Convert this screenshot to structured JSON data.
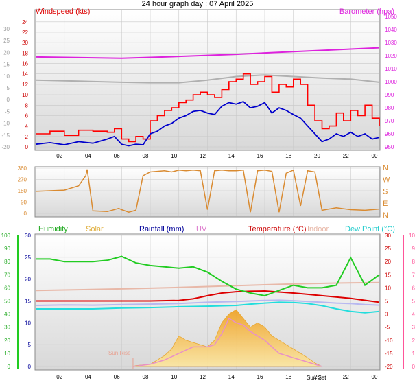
{
  "title": "24 hour graph day : 07 April 2025",
  "colors": {
    "windspeed": "#ff0000",
    "windavg": "#0000cc",
    "temp_grey": "#b0b0b0",
    "barometer": "#dd22dd",
    "direction": "#d98a30",
    "humidity": "#22cc22",
    "solar": "#f2b640",
    "rainfall": "#000099",
    "uv": "#dd77cc",
    "temperature": "#dd0000",
    "indoor": "#e8b8a8",
    "dewpoint": "#22dddd",
    "sunrise_label": "#e8a090",
    "pink_axis": "#ff5599"
  },
  "chart_data": [
    {
      "type": "line",
      "panel": "wind",
      "title": "Windspeed (kts)",
      "right_label": "Barometer (hpa)",
      "x_ticks": [
        "02",
        "04",
        "06",
        "08",
        "10",
        "12",
        "14",
        "16",
        "18",
        "20",
        "22",
        "00"
      ],
      "left_far_ticks": [
        "30",
        "25",
        "20",
        "15",
        "10",
        "5",
        "0",
        "-5",
        "-10",
        "-15",
        "-20"
      ],
      "left_ticks": [
        "24",
        "22",
        "20",
        "18",
        "16",
        "14",
        "12",
        "10",
        "8",
        "6",
        "4",
        "2",
        "0"
      ],
      "right_ticks": [
        "1050",
        "1040",
        "1030",
        "1020",
        "1010",
        "1000",
        "990",
        "980",
        "970",
        "960",
        "950"
      ],
      "ylim_left": [
        0,
        24.5
      ],
      "ylim_right": [
        948,
        1050
      ],
      "series": [
        {
          "key": "barometer",
          "x": [
            0,
            6,
            9,
            14,
            18,
            22,
            24
          ],
          "y": [
            1019,
            1018,
            1019,
            1021,
            1023,
            1025,
            1026
          ]
        },
        {
          "key": "greyline",
          "x": [
            0,
            3,
            6,
            8,
            10,
            12,
            14,
            16,
            18,
            20,
            22,
            24
          ],
          "y": [
            12.8,
            12.6,
            12.4,
            12.3,
            12.3,
            12.8,
            13.5,
            13.8,
            13.5,
            13.2,
            13.0,
            12.4
          ]
        },
        {
          "key": "gust",
          "x": [
            0,
            1,
            2,
            3,
            4,
            5,
            5.5,
            6,
            6.5,
            7,
            7.5,
            8,
            8.5,
            9,
            9.5,
            10,
            10.5,
            11,
            11.5,
            12,
            12.5,
            13,
            13.5,
            14,
            14.5,
            15,
            15.5,
            16,
            16.5,
            17,
            17.5,
            18,
            18.5,
            19,
            19.5,
            20,
            20.5,
            21,
            21.5,
            22,
            22.5,
            23,
            23.5,
            24
          ],
          "y": [
            2.5,
            3,
            2.2,
            3.2,
            3,
            2.8,
            3.5,
            1.5,
            1,
            2,
            1.5,
            5,
            6,
            7,
            7.5,
            8.5,
            9,
            10,
            10.5,
            10,
            9.5,
            11,
            12.5,
            13,
            14,
            12,
            12.5,
            13.5,
            10.5,
            12,
            11.5,
            13,
            12,
            8,
            5,
            3.5,
            4,
            6.5,
            5,
            7,
            6,
            8,
            5.5,
            4
          ]
        },
        {
          "key": "average",
          "x": [
            0,
            1,
            2,
            3,
            4,
            5,
            5.5,
            6,
            6.5,
            7,
            7.5,
            8,
            8.5,
            9,
            9.5,
            10,
            10.5,
            11,
            11.5,
            12,
            12.5,
            13,
            13.5,
            14,
            14.5,
            15,
            15.5,
            16,
            16.5,
            17,
            17.5,
            18,
            18.5,
            19,
            19.5,
            20,
            20.5,
            21,
            21.5,
            22,
            22.5,
            23,
            23.5,
            24
          ],
          "y": [
            0.5,
            0.8,
            0.4,
            1,
            0.7,
            1.5,
            2,
            0.5,
            0.2,
            0.5,
            0.4,
            2.5,
            3,
            4,
            4.5,
            5.5,
            6,
            6.8,
            7,
            6.5,
            6.2,
            7.8,
            8.5,
            8.2,
            8.7,
            7.5,
            7.8,
            8.5,
            6.5,
            7.5,
            7,
            6.2,
            5.5,
            4,
            2.5,
            1,
            1.5,
            2.5,
            2,
            2.8,
            2,
            2.5,
            1.5,
            1.8
          ]
        }
      ]
    },
    {
      "type": "line",
      "panel": "direction",
      "left_ticks": [
        "360",
        "270",
        "180",
        "90",
        "0"
      ],
      "right_ticks": [
        "N",
        "W",
        "S",
        "E",
        "N"
      ],
      "ylim": [
        0,
        360
      ],
      "series": [
        {
          "key": "direction",
          "x": [
            0,
            2,
            3,
            3.5,
            3.6,
            4,
            5,
            5.8,
            6,
            6.5,
            7,
            7.5,
            8,
            8.5,
            9,
            9.5,
            10,
            10.5,
            11,
            11.5,
            12,
            12.5,
            13,
            13.5,
            14,
            14.5,
            15,
            15.5,
            16,
            16.5,
            17,
            17.5,
            18,
            18.5,
            19,
            19.5,
            20,
            21,
            22,
            23,
            24
          ],
          "y": [
            175,
            185,
            220,
            300,
            350,
            20,
            15,
            40,
            30,
            10,
            25,
            300,
            330,
            335,
            340,
            330,
            345,
            340,
            345,
            340,
            30,
            340,
            345,
            340,
            340,
            345,
            10,
            340,
            345,
            335,
            10,
            320,
            345,
            60,
            340,
            330,
            25,
            45,
            30,
            25,
            35
          ]
        }
      ]
    },
    {
      "type": "area",
      "panel": "atmos",
      "labels": [
        "Humidity",
        "Solar",
        "Rainfall (mm)",
        "UV",
        "Temperature (°C)",
        "Indoor",
        "Dew Point (°C)"
      ],
      "left_far_ticks": [
        "100",
        "90",
        "80",
        "70",
        "60",
        "50",
        "40",
        "30",
        "20",
        "10",
        "0"
      ],
      "left_ticks": [
        "30",
        "25",
        "20",
        "15",
        "10",
        "5",
        "0"
      ],
      "right_ticks": [
        "30",
        "25",
        "20",
        "15",
        "10",
        "5",
        "0",
        "-5",
        "-10",
        "-15",
        "-20"
      ],
      "right_far_ticks": [
        "10",
        "9",
        "8",
        "7",
        "6",
        "5",
        "4",
        "3",
        "2",
        "1",
        "0"
      ],
      "ylim_humidity": [
        0,
        100
      ],
      "ylim_temp": [
        -20,
        30
      ],
      "annotations": [
        "Sun Rise",
        "Sun Set"
      ],
      "sunrise_hour": 6.8,
      "sunset_hour": 20.0,
      "series": [
        {
          "key": "humidity",
          "x": [
            0,
            1,
            2,
            3,
            4,
            5,
            6,
            7,
            8,
            9,
            10,
            11,
            12,
            13,
            14,
            15,
            16,
            17,
            18,
            19,
            20,
            21,
            22,
            23,
            24
          ],
          "y": [
            82,
            82,
            80,
            80,
            80,
            81,
            84,
            79,
            77,
            76,
            75,
            76,
            72,
            65,
            59,
            56,
            54,
            58,
            62,
            60,
            60,
            62,
            83,
            62,
            70
          ]
        },
        {
          "key": "temperature",
          "x": [
            0,
            2,
            4,
            6,
            8,
            10,
            11,
            12,
            13,
            14,
            15,
            16,
            17,
            18,
            19,
            20,
            22,
            24
          ],
          "y": [
            5,
            5,
            5,
            5,
            5,
            5.2,
            5.8,
            7,
            8,
            8.5,
            8.7,
            8.8,
            8.4,
            8,
            7.5,
            7,
            6,
            4.5
          ]
        },
        {
          "key": "indoor",
          "x": [
            0,
            3,
            6,
            9,
            12,
            15,
            18,
            21,
            24
          ],
          "y": [
            9,
            9.3,
            9.6,
            10,
            10.5,
            11,
            11.5,
            11.8,
            12
          ]
        },
        {
          "key": "dewpoint",
          "x": [
            0,
            2,
            4,
            6,
            8,
            10,
            12,
            14,
            15,
            16,
            17,
            18,
            19,
            20,
            21,
            22,
            23,
            24
          ],
          "y": [
            2,
            2,
            2,
            2.3,
            2.5,
            2.8,
            3,
            3.3,
            3.8,
            4.2,
            4.5,
            4.4,
            4,
            3.2,
            2,
            1,
            0.5,
            1
          ]
        },
        {
          "key": "uv",
          "x": [
            0,
            2,
            4,
            6,
            8,
            10,
            12,
            14,
            15,
            16,
            17,
            18,
            19,
            20,
            21,
            22,
            23,
            24
          ],
          "y": [
            3.3,
            3.5,
            3.4,
            3.6,
            3.8,
            4,
            4.5,
            4.8,
            5,
            5.2,
            5.3,
            5.1,
            4.8,
            4.5,
            4.2,
            4,
            3.6,
            3.4
          ]
        },
        {
          "key": "solar",
          "x": [
            6.8,
            7,
            8,
            8.5,
            9,
            9.5,
            10,
            10.5,
            11,
            11.5,
            12,
            12.5,
            13,
            13.5,
            14,
            14.5,
            15,
            15.5,
            16,
            16.5,
            17,
            17.5,
            18,
            18.5,
            19,
            19.5,
            20
          ],
          "y": [
            0,
            0.2,
            0.5,
            1.5,
            2.5,
            4,
            7,
            6,
            5.5,
            5,
            4.5,
            6,
            10,
            12,
            13,
            11,
            9,
            10,
            9,
            7,
            6,
            5,
            4,
            3,
            2,
            0.8,
            0
          ]
        },
        {
          "key": "solar_pink",
          "x": [
            6.8,
            8,
            9,
            10,
            11,
            12,
            12.5,
            13,
            13.5,
            14,
            14.5,
            15,
            16,
            17,
            18,
            19,
            20
          ],
          "y": [
            0,
            0.5,
            1.5,
            3,
            4.5,
            4.5,
            5,
            7.5,
            11,
            10,
            9.5,
            8,
            6,
            3,
            2,
            1,
            0
          ]
        }
      ]
    }
  ]
}
